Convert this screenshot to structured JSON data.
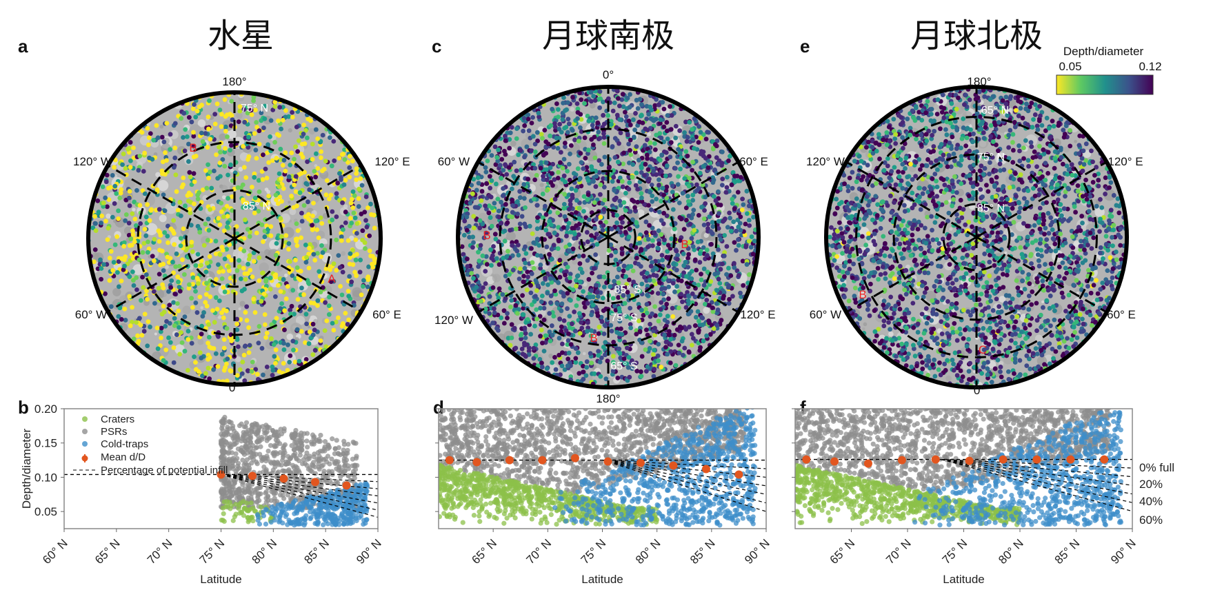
{
  "colors": {
    "craters": "#8cc04a",
    "psrs": "#8e8e8e",
    "cold_traps": "#3d8ec9",
    "mean": "#e2561f",
    "colormap": "viridis_r"
  },
  "colorbar": {
    "label": "Depth/diameter",
    "min_label": "0.05",
    "max_label": "0.12",
    "range": [
      0.05,
      0.12
    ]
  },
  "maps": [
    {
      "panel": "a",
      "title": "水星",
      "lon_labels": [
        "180°",
        "0°",
        "120° W",
        "120° E",
        "60° W",
        "60° E"
      ],
      "lat_labels": [
        "75° N",
        "85° N"
      ],
      "feature_labels": [
        "B",
        "A"
      ]
    },
    {
      "panel": "c",
      "title": "月球南极",
      "lon_labels": [
        "0°",
        "180°",
        "60° W",
        "60° E",
        "120° W",
        "120° E"
      ],
      "lat_labels": [
        "85° S",
        "75° S",
        "65° S"
      ],
      "feature_labels": [
        "B",
        "B",
        "B"
      ]
    },
    {
      "panel": "e",
      "title": "月球北极",
      "lon_labels": [
        "180°",
        "0°",
        "120° W",
        "120° E",
        "60° W",
        "60° E"
      ],
      "lat_labels": [
        "65° N",
        "75° N",
        "85° N"
      ],
      "feature_labels": [
        "B",
        "C"
      ]
    }
  ],
  "legend": {
    "craters": "Craters",
    "psrs": "PSRs",
    "cold_traps": "Cold-traps",
    "mean": "Mean d/D",
    "infill": "Percentage of potential infill"
  },
  "chart_data": [
    {
      "panel": "b",
      "type": "scatter",
      "xlabel": "Latitude",
      "ylabel": "Depth/diameter",
      "xlim": [
        60,
        90
      ],
      "ylim": [
        0.025,
        0.2
      ],
      "xticks": [
        "60° N",
        "65° N",
        "70° N",
        "75° N",
        "80° N",
        "85° N",
        "90° N"
      ],
      "yticks": [
        "0.20",
        "0.15",
        "0.10",
        "0.05"
      ],
      "legend_position": "top-left",
      "mean_dD": {
        "lat": [
          75,
          78,
          81,
          84,
          87
        ],
        "value": [
          0.104,
          0.102,
          0.098,
          0.093,
          0.088
        ]
      },
      "infill_baseline": 0.104
    },
    {
      "panel": "d",
      "type": "scatter",
      "xlabel": "Latitude",
      "xlim": [
        60,
        90
      ],
      "ylim": [
        0.025,
        0.2
      ],
      "xticks": [
        "65° N",
        "70° N",
        "75° N",
        "80° N",
        "85° N",
        "90° N"
      ],
      "mean_dD": {
        "lat": [
          61,
          63.5,
          66.5,
          69.5,
          72.5,
          75.5,
          78.5,
          81.5,
          84.5,
          87.5
        ],
        "value": [
          0.125,
          0.122,
          0.125,
          0.125,
          0.128,
          0.123,
          0.121,
          0.117,
          0.112,
          0.104
        ]
      },
      "infill_baseline": 0.125
    },
    {
      "panel": "f",
      "type": "scatter",
      "xlabel": "Latitude",
      "xlim": [
        60,
        90
      ],
      "ylim": [
        0.025,
        0.2
      ],
      "xticks": [
        "65° N",
        "70° N",
        "75° N",
        "80° N",
        "85° N",
        "90° N"
      ],
      "mean_dD": {
        "lat": [
          61,
          63.5,
          66.5,
          69.5,
          72.5,
          75.5,
          78.5,
          81.5,
          84.5,
          87.5
        ],
        "value": [
          0.126,
          0.123,
          0.12,
          0.125,
          0.126,
          0.124,
          0.126,
          0.126,
          0.126,
          0.126
        ]
      },
      "infill_baseline": 0.126,
      "infill_labels": [
        "0% full",
        "20%",
        "40%",
        "60%"
      ]
    }
  ]
}
